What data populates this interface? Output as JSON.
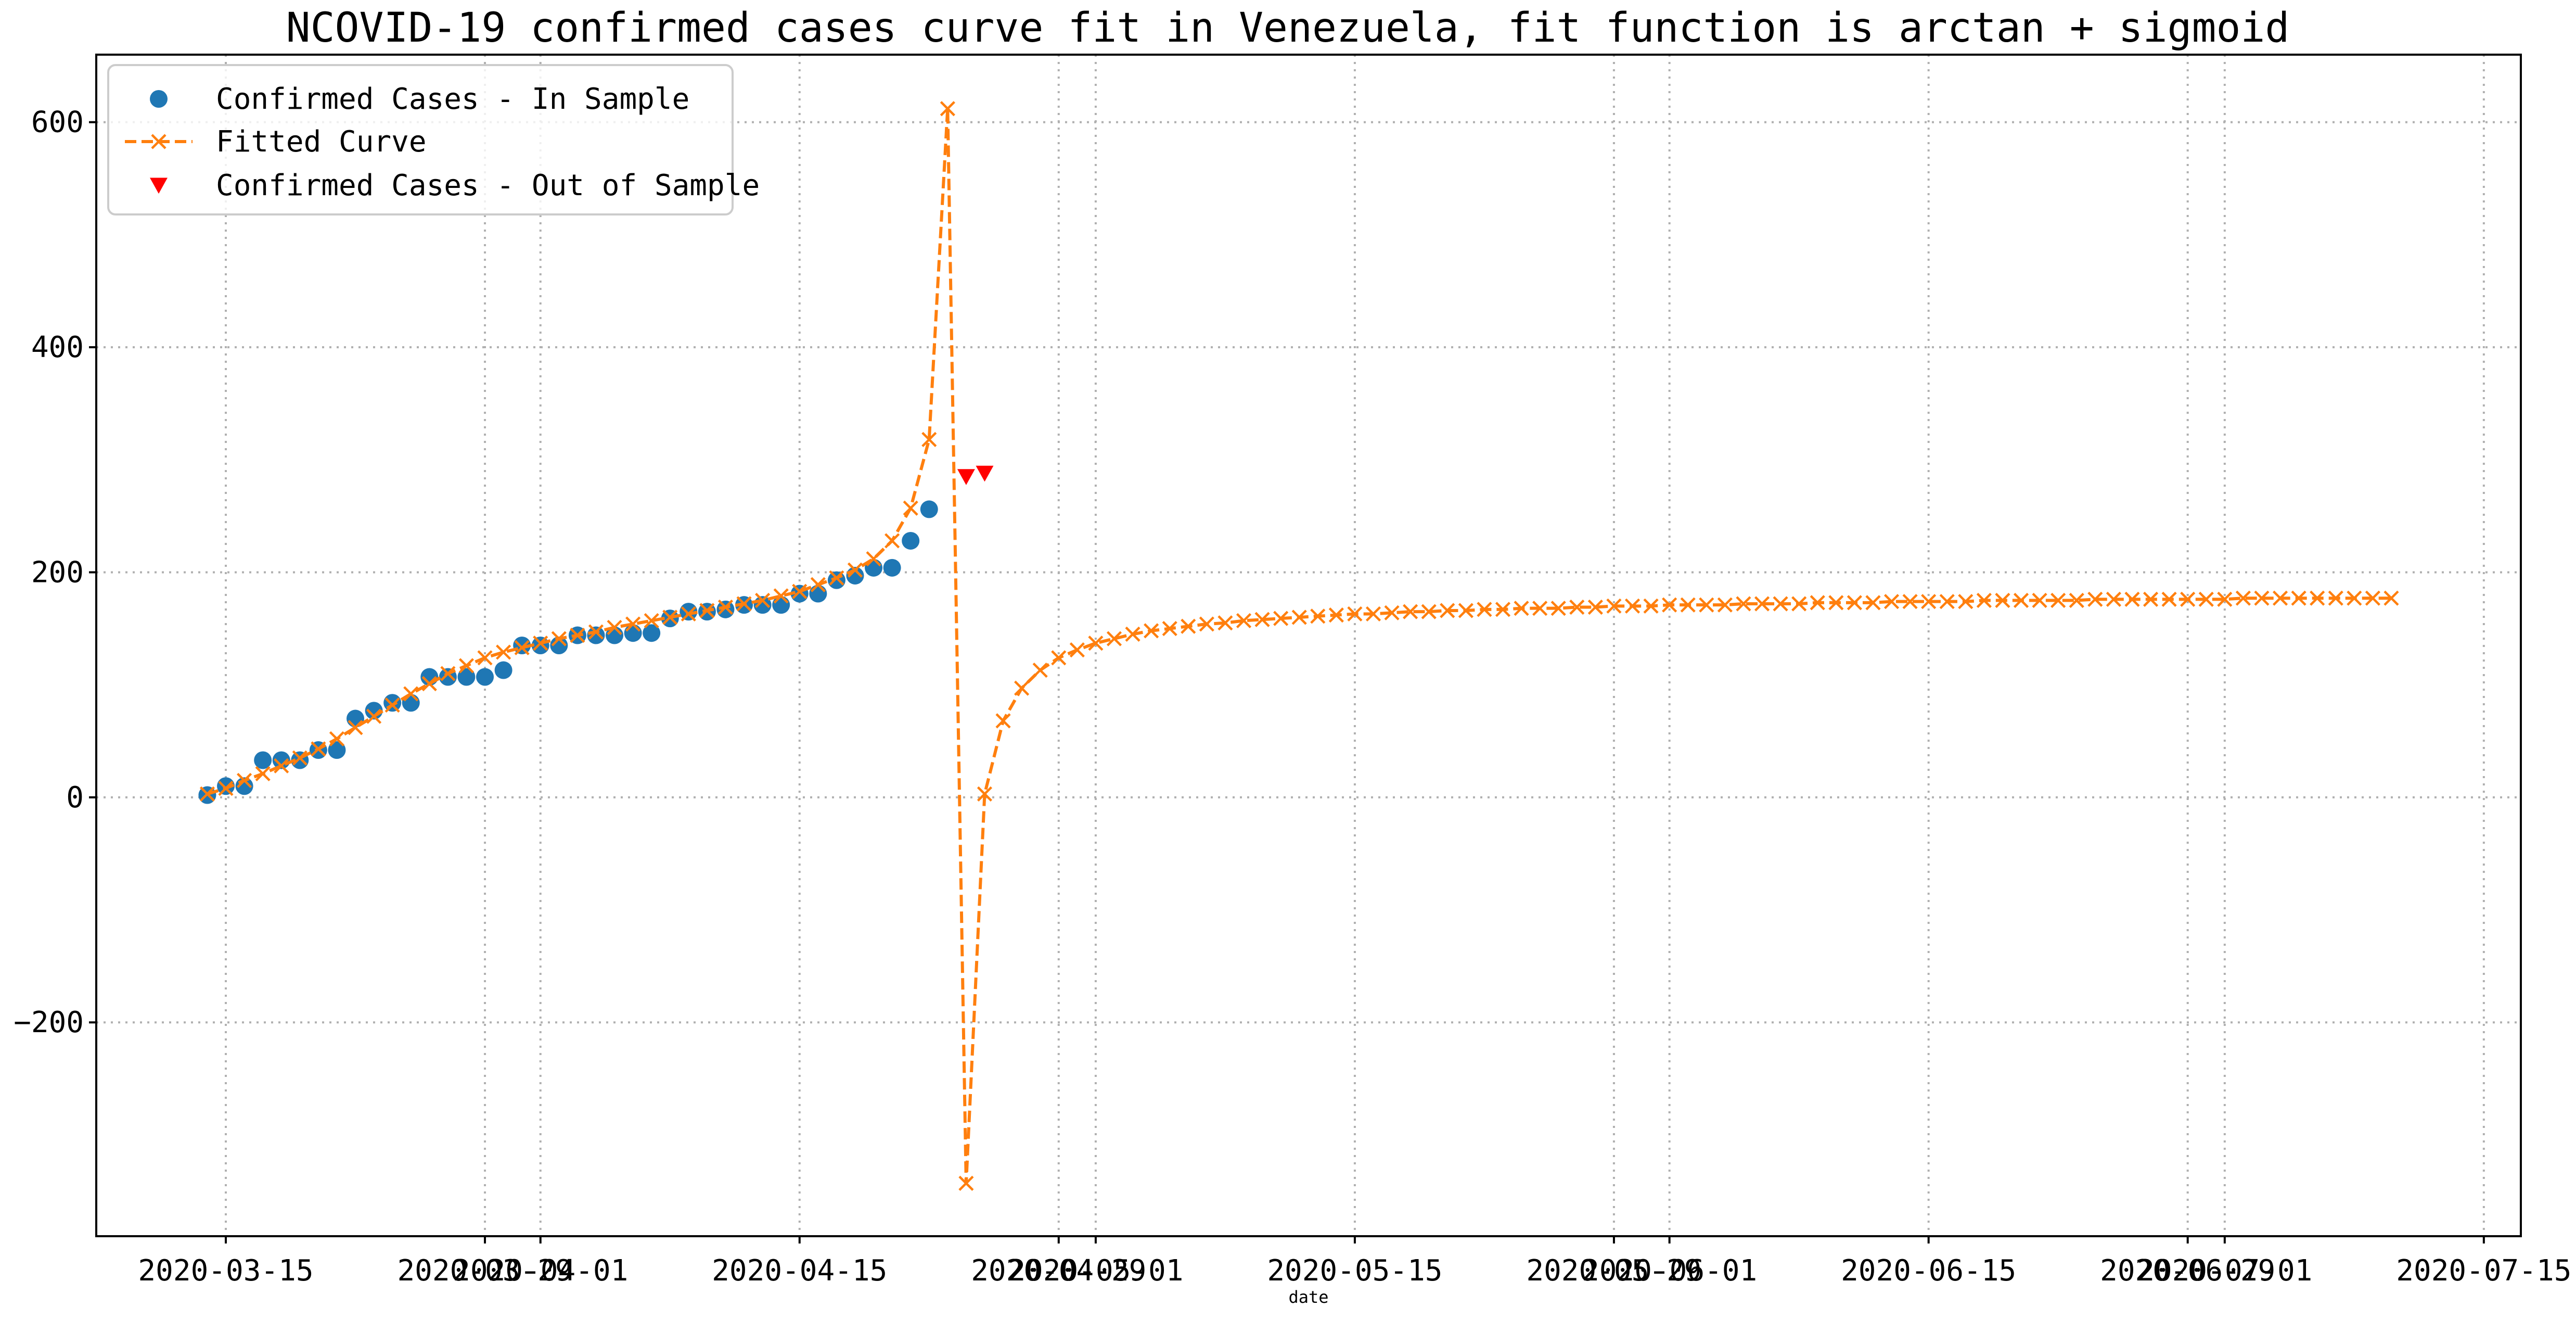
{
  "chart_data": {
    "type": "line",
    "title": "NCOVID-19 confirmed cases curve fit in Venezuela, fit function is arctan + sigmoid",
    "xlabel": "date",
    "ylabel": "",
    "grid": true,
    "legend_position": "top-left",
    "x_tick_labels": [
      "2020-03-15",
      "2020-03-29",
      "2020-04-01",
      "2020-04-15",
      "2020-04-29",
      "2020-05-01",
      "2020-05-15",
      "2020-05-29",
      "2020-06-01",
      "2020-06-15",
      "2020-06-29",
      "2020-07-01",
      "2020-07-15"
    ],
    "y_tick_labels": [
      "-200",
      "0",
      "200",
      "400",
      "600"
    ],
    "y_ticks": [
      -200,
      0,
      200,
      400,
      600
    ],
    "xlim": [
      "2020-03-08",
      "2020-07-17"
    ],
    "ylim": [
      -390,
      660
    ],
    "series": [
      {
        "name": "Confirmed Cases - In Sample",
        "color": "#1f77b4",
        "marker": "circle",
        "x": [
          "2020-03-14",
          "2020-03-15",
          "2020-03-16",
          "2020-03-17",
          "2020-03-18",
          "2020-03-19",
          "2020-03-20",
          "2020-03-21",
          "2020-03-22",
          "2020-03-23",
          "2020-03-24",
          "2020-03-25",
          "2020-03-26",
          "2020-03-27",
          "2020-03-28",
          "2020-03-29",
          "2020-03-30",
          "2020-03-31",
          "2020-04-01",
          "2020-04-02",
          "2020-04-03",
          "2020-04-04",
          "2020-04-05",
          "2020-04-06",
          "2020-04-07",
          "2020-04-08",
          "2020-04-09",
          "2020-04-10",
          "2020-04-11",
          "2020-04-12",
          "2020-04-13",
          "2020-04-14",
          "2020-04-15",
          "2020-04-16",
          "2020-04-17",
          "2020-04-18",
          "2020-04-19",
          "2020-04-20",
          "2020-04-21",
          "2020-04-22"
        ],
        "y": [
          2,
          10,
          10,
          33,
          33,
          33,
          42,
          42,
          70,
          77,
          84,
          84,
          107,
          107,
          107,
          107,
          113,
          135,
          135,
          135,
          144,
          144,
          144,
          146,
          146,
          159,
          165,
          165,
          167,
          171,
          171,
          171,
          181,
          181,
          193,
          197,
          204,
          204,
          228,
          256
        ]
      },
      {
        "name": "Fitted Curve",
        "color": "#ff7f0e",
        "marker": "x",
        "linestyle": "dashed",
        "x_start": "2020-03-14",
        "x_step_days": 1,
        "y": [
          3,
          8,
          15,
          21,
          28,
          35,
          43,
          52,
          62,
          72,
          82,
          92,
          101,
          110,
          117,
          124,
          129,
          133,
          137,
          141,
          144,
          147,
          151,
          154,
          157,
          160,
          163,
          166,
          169,
          172,
          175,
          179,
          183,
          189,
          195,
          202,
          212,
          228,
          257,
          318,
          612,
          -343,
          3,
          68,
          97,
          113,
          124,
          131,
          137,
          141,
          145,
          148,
          150,
          152,
          154,
          155,
          157,
          158,
          159,
          160,
          161,
          162,
          163,
          163,
          164,
          165,
          165,
          166,
          166,
          167,
          167,
          168,
          168,
          168,
          169,
          169,
          170,
          170,
          170,
          171,
          171,
          171,
          171,
          172,
          172,
          172,
          172,
          173,
          173,
          173,
          173,
          174,
          174,
          174,
          174,
          174,
          175,
          175,
          175,
          175,
          175,
          175,
          176,
          176,
          176,
          176,
          176,
          176,
          176,
          176,
          177,
          177,
          177,
          177,
          177,
          177,
          177,
          177,
          177
        ]
      },
      {
        "name": "Confirmed Cases - Out of Sample",
        "color": "#ff0000",
        "marker": "triangle_down",
        "x": [
          "2020-04-24",
          "2020-04-25"
        ],
        "y": [
          285,
          288
        ]
      }
    ]
  }
}
